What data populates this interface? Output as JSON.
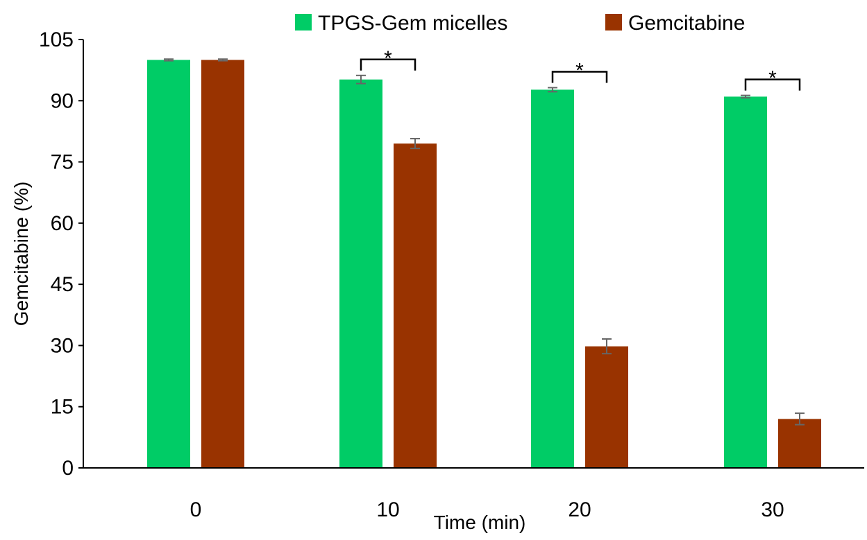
{
  "chart_data": {
    "type": "bar",
    "title": "",
    "xlabel": "Time (min)",
    "ylabel": "Gemcitabine (%)",
    "categories": [
      "0",
      "10",
      "20",
      "30"
    ],
    "ylim": [
      0,
      105
    ],
    "yticks": [
      0,
      15,
      30,
      45,
      60,
      75,
      90,
      105
    ],
    "grid": false,
    "legend_position": "top",
    "series": [
      {
        "name": "TPGS-Gem micelles",
        "color": "#00CC66",
        "values": [
          100,
          95.2,
          92.7,
          91.0
        ],
        "errors": [
          0.2,
          1.0,
          0.5,
          0.3
        ]
      },
      {
        "name": "Gemcitabine",
        "color": "#993300",
        "values": [
          100,
          79.5,
          29.8,
          12.0
        ],
        "errors": [
          0.2,
          1.2,
          1.8,
          1.4
        ]
      }
    ],
    "significance": [
      {
        "category": "10",
        "label": "*"
      },
      {
        "category": "20",
        "label": "*"
      },
      {
        "category": "30",
        "label": "*"
      }
    ]
  }
}
